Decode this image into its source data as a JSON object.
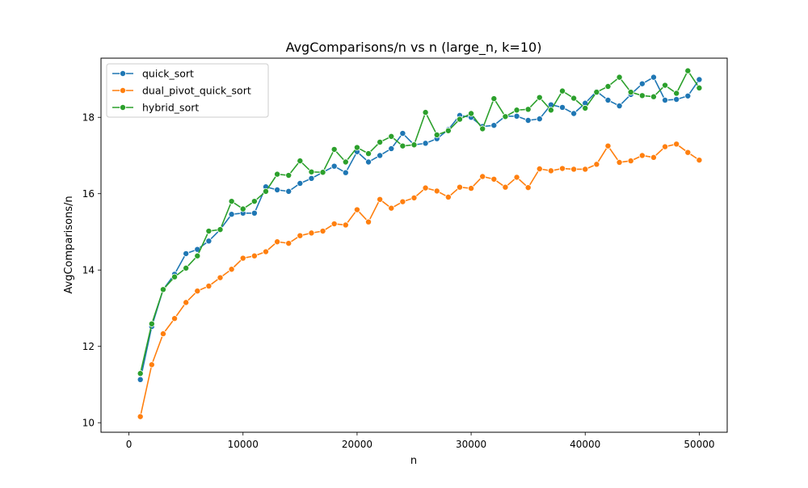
{
  "chart_data": {
    "type": "line",
    "title": "AvgComparisons/n vs n (large_n, k=10)",
    "xlabel": "n",
    "ylabel": "AvgComparisons/n",
    "xlim": [
      -2450,
      52450
    ],
    "ylim": [
      9.75,
      19.55
    ],
    "xticks": [
      0,
      10000,
      20000,
      30000,
      40000,
      50000
    ],
    "xtick_labels": [
      "0",
      "10000",
      "20000",
      "30000",
      "40000",
      "50000"
    ],
    "yticks": [
      10,
      12,
      14,
      16,
      18
    ],
    "ytick_labels": [
      "10",
      "12",
      "14",
      "16",
      "18"
    ],
    "grid": false,
    "legend_position": "upper-left",
    "x": [
      1000,
      2000,
      3000,
      4000,
      5000,
      6000,
      7000,
      8000,
      9000,
      10000,
      11000,
      12000,
      13000,
      14000,
      15000,
      16000,
      17000,
      18000,
      19000,
      20000,
      21000,
      22000,
      23000,
      24000,
      25000,
      26000,
      27000,
      28000,
      29000,
      30000,
      31000,
      32000,
      33000,
      34000,
      35000,
      36000,
      37000,
      38000,
      39000,
      40000,
      41000,
      42000,
      43000,
      44000,
      45000,
      46000,
      47000,
      48000,
      49000,
      50000
    ],
    "series": [
      {
        "name": "quick_sort",
        "color": "#1f77b4",
        "values": [
          11.13,
          12.52,
          13.49,
          13.89,
          14.43,
          14.54,
          14.76,
          15.06,
          15.46,
          15.49,
          15.49,
          16.18,
          16.1,
          16.06,
          16.27,
          16.4,
          16.56,
          16.72,
          16.55,
          17.1,
          16.83,
          17.0,
          17.18,
          17.58,
          17.28,
          17.32,
          17.44,
          17.68,
          18.05,
          18.0,
          17.76,
          17.79,
          18.03,
          18.03,
          17.92,
          17.96,
          18.33,
          18.26,
          18.1,
          18.37,
          18.68,
          18.45,
          18.3,
          18.6,
          18.88,
          19.05,
          18.45,
          18.47,
          18.56,
          18.99
        ]
      },
      {
        "name": "dual_pivot_quick_sort",
        "color": "#ff7f0e",
        "values": [
          10.16,
          11.52,
          12.33,
          12.73,
          13.15,
          13.45,
          13.58,
          13.8,
          14.02,
          14.31,
          14.37,
          14.48,
          14.74,
          14.7,
          14.9,
          14.97,
          15.02,
          15.21,
          15.18,
          15.58,
          15.26,
          15.85,
          15.62,
          15.79,
          15.89,
          16.15,
          16.07,
          15.91,
          16.17,
          16.14,
          16.45,
          16.38,
          16.17,
          16.43,
          16.16,
          16.65,
          16.6,
          16.66,
          16.64,
          16.64,
          16.77,
          17.25,
          16.82,
          16.86,
          17.0,
          16.95,
          17.23,
          17.3,
          17.08,
          16.88
        ]
      },
      {
        "name": "hybrid_sort",
        "color": "#2ca02c",
        "values": [
          11.29,
          12.59,
          13.49,
          13.82,
          14.05,
          14.37,
          15.02,
          15.06,
          15.8,
          15.6,
          15.8,
          16.06,
          16.51,
          16.48,
          16.86,
          16.57,
          16.56,
          17.16,
          16.83,
          17.21,
          17.05,
          17.35,
          17.5,
          17.25,
          17.28,
          18.13,
          17.54,
          17.65,
          17.95,
          18.1,
          17.7,
          18.49,
          18.02,
          18.19,
          18.21,
          18.52,
          18.19,
          18.69,
          18.5,
          18.24,
          18.66,
          18.81,
          19.05,
          18.66,
          18.57,
          18.54,
          18.84,
          18.63,
          19.22,
          18.77
        ]
      }
    ]
  }
}
